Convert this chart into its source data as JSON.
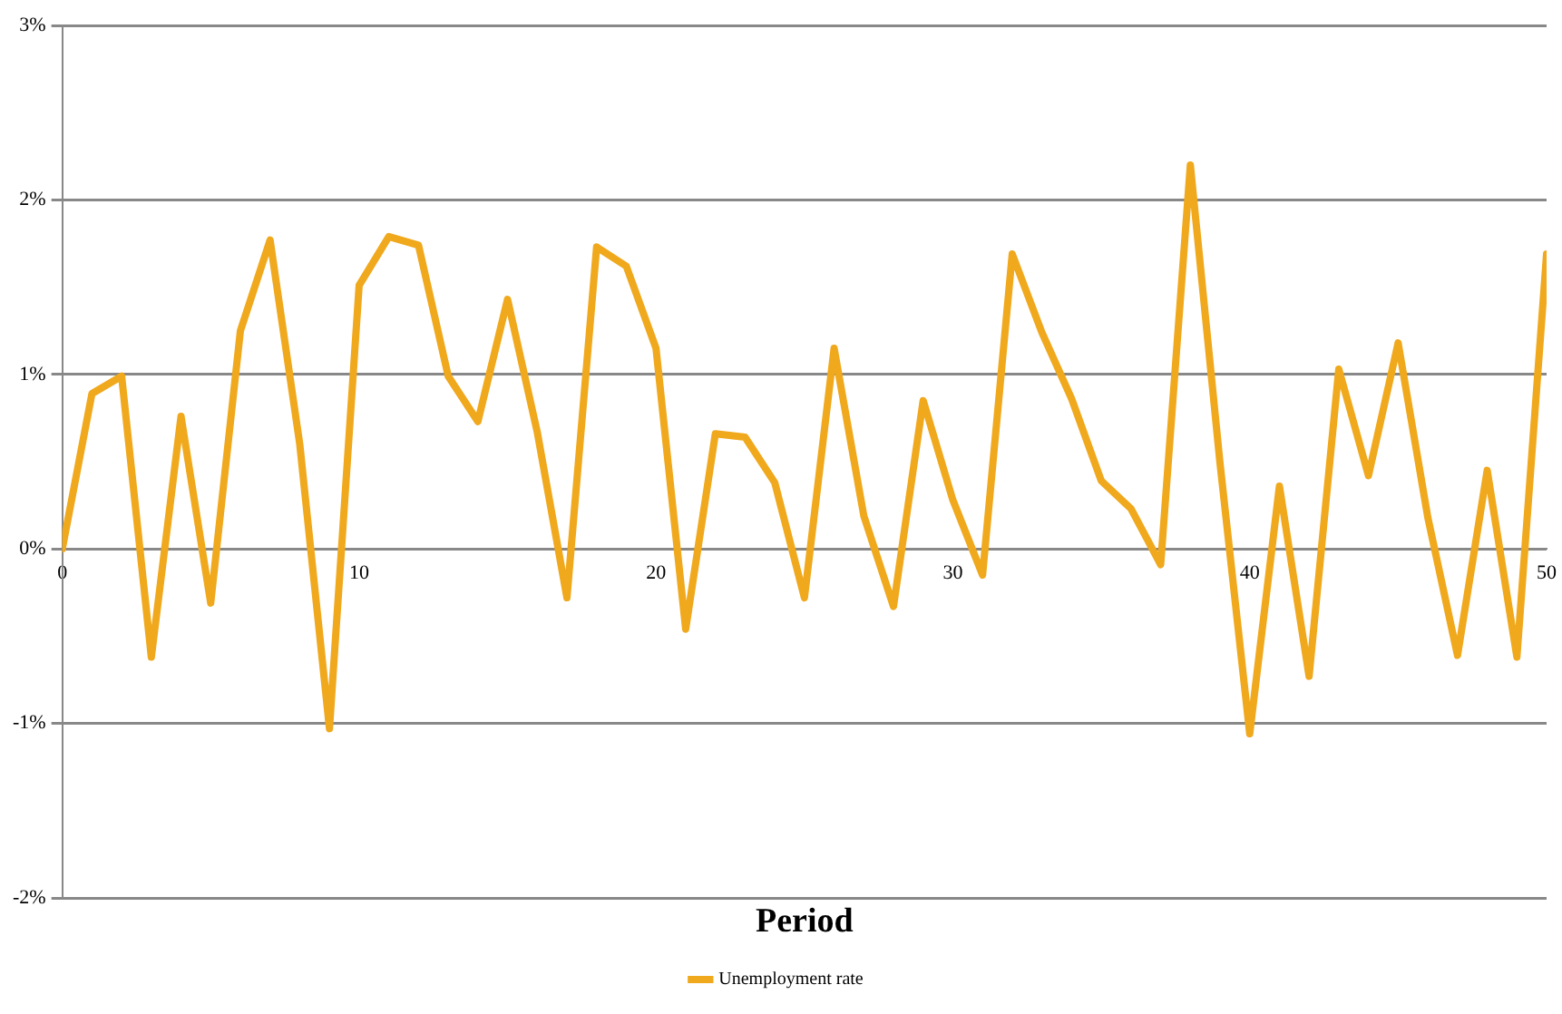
{
  "chart_data": {
    "type": "line",
    "xlabel": "Period",
    "x": [
      0,
      1,
      2,
      3,
      4,
      5,
      6,
      7,
      8,
      9,
      10,
      11,
      12,
      13,
      14,
      15,
      16,
      17,
      18,
      19,
      20,
      21,
      22,
      23,
      24,
      25,
      26,
      27,
      28,
      29,
      30,
      31,
      32,
      33,
      34,
      35,
      36,
      37,
      38,
      39,
      40,
      41,
      42,
      43,
      44,
      45,
      46,
      47,
      48,
      49,
      50
    ],
    "series": [
      {
        "name": "Unemployment rate",
        "color": "#f0a81c",
        "values": [
          0.0,
          0.89,
          0.99,
          -0.62,
          0.76,
          -0.31,
          1.25,
          1.77,
          0.6,
          -1.03,
          1.51,
          1.79,
          1.74,
          0.99,
          0.73,
          1.43,
          0.67,
          -0.28,
          1.73,
          1.62,
          1.15,
          -0.46,
          0.66,
          0.64,
          0.38,
          -0.28,
          1.15,
          0.19,
          -0.33,
          0.85,
          0.28,
          -0.15,
          1.69,
          1.24,
          0.86,
          0.39,
          0.23,
          -0.09,
          2.2,
          0.49,
          -1.06,
          0.36,
          -0.73,
          1.03,
          0.42,
          1.18,
          0.18,
          -0.61,
          0.45,
          -0.62,
          1.69
        ]
      }
    ],
    "xlim": [
      0,
      50
    ],
    "xticks": [
      0,
      10,
      20,
      30,
      40,
      50
    ],
    "ylim": [
      -2,
      3
    ],
    "yticks": [
      {
        "value": -2,
        "label": "-2%"
      },
      {
        "value": -1,
        "label": "-1%"
      },
      {
        "value": 0,
        "label": "0%"
      },
      {
        "value": 1,
        "label": "1%"
      },
      {
        "value": 2,
        "label": "2%"
      },
      {
        "value": 3,
        "label": "3%"
      }
    ],
    "grid": "y",
    "legend": "bottom",
    "marker": "none",
    "line_style": "solid"
  }
}
